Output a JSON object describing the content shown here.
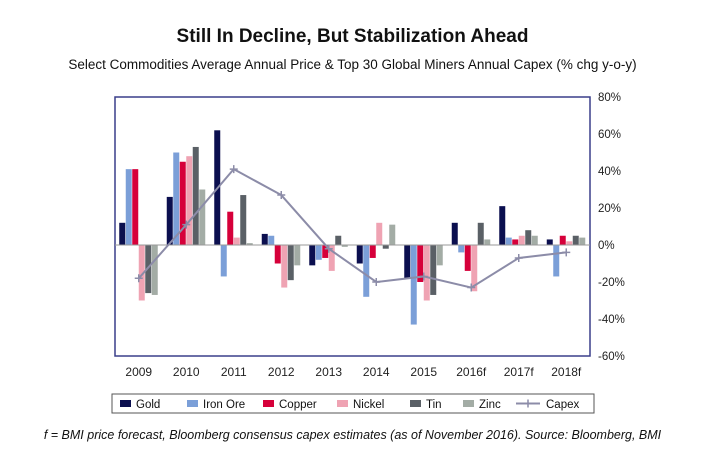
{
  "chart_data": {
    "type": "bar",
    "title": "Still In Decline, But Stabilization Ahead",
    "subtitle": "Select Commodities Average Annual Price & Top 30 Global Miners Annual Capex (% chg y-o-y)",
    "footnote": "f = BMI price forecast, Bloomberg consensus capex estimates (as of November 2016). Source: Bloomberg, BMI",
    "categories": [
      "2009",
      "2010",
      "2011",
      "2012",
      "2013",
      "2014",
      "2015",
      "2016f",
      "2017f",
      "2018f"
    ],
    "ylim": [
      -60,
      80
    ],
    "yticks": [
      -60,
      -40,
      -20,
      0,
      20,
      40,
      60,
      80
    ],
    "ytick_labels": [
      "-60%",
      "-40%",
      "-20%",
      "0%",
      "20%",
      "40%",
      "60%",
      "80%"
    ],
    "yaxis_side": "right",
    "grid": false,
    "legend_placement": "bottom",
    "series": [
      {
        "name": "Gold",
        "type": "bar",
        "color": "#0b0f4f",
        "values": [
          12,
          26,
          62,
          6,
          -11,
          -10,
          -18,
          12,
          21,
          3
        ]
      },
      {
        "name": "Iron Ore",
        "type": "bar",
        "color": "#7b9fd8",
        "values": [
          41,
          50,
          -17,
          5,
          -8,
          -28,
          -43,
          -4,
          4,
          -17
        ]
      },
      {
        "name": "Copper",
        "type": "bar",
        "color": "#d6003a",
        "values": [
          41,
          45,
          18,
          -10,
          -7,
          -7,
          -20,
          -14,
          3,
          5
        ]
      },
      {
        "name": "Nickel",
        "type": "bar",
        "color": "#efa3b3",
        "values": [
          -30,
          48,
          4,
          -23,
          -14,
          12,
          -30,
          -25,
          5,
          2
        ]
      },
      {
        "name": "Tin",
        "type": "bar",
        "color": "#5a6066",
        "values": [
          -26,
          53,
          27,
          -19,
          5,
          -2,
          -27,
          12,
          8,
          5
        ]
      },
      {
        "name": "Zinc",
        "type": "bar",
        "color": "#a3aca5",
        "values": [
          -27,
          30,
          1,
          -11,
          -1,
          11,
          -11,
          3,
          5,
          4
        ]
      },
      {
        "name": "Capex",
        "type": "line",
        "color": "#8c8ca8",
        "values": [
          -18,
          11,
          41,
          27,
          -2,
          -20,
          -17,
          -23,
          -7,
          -4
        ]
      }
    ]
  }
}
